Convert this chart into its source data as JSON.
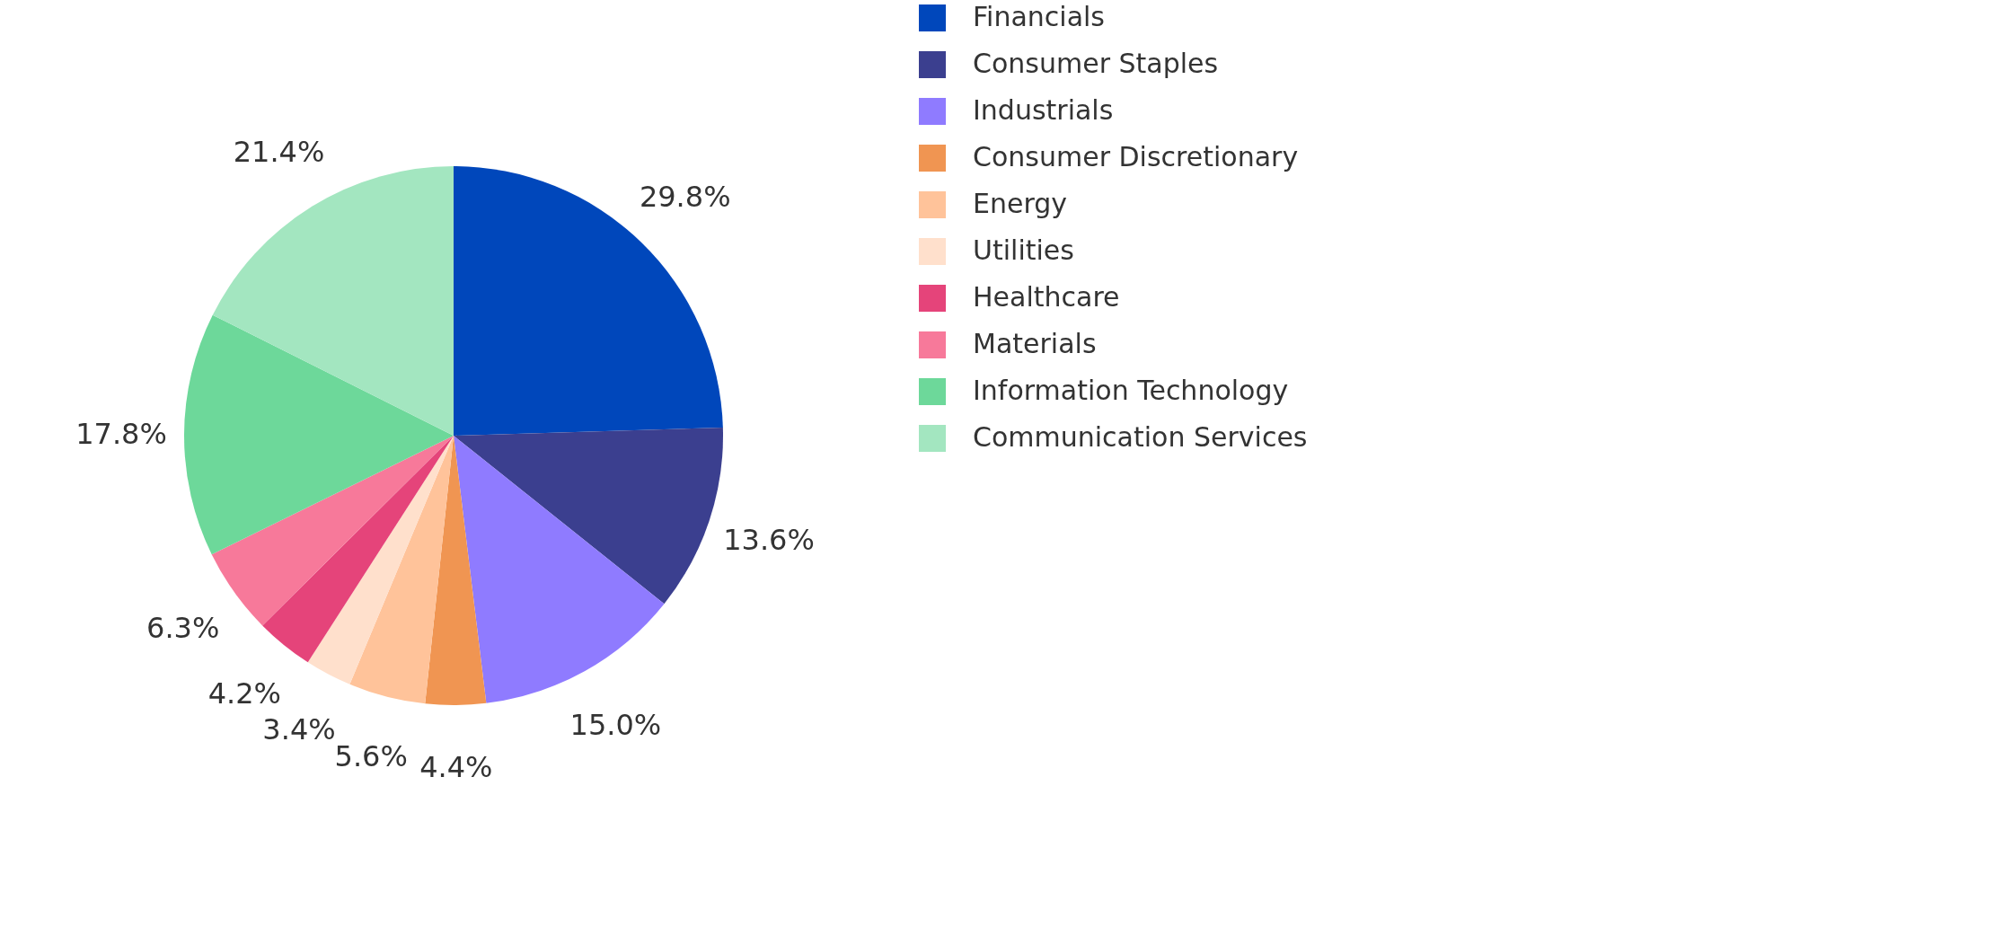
{
  "chart_data": {
    "type": "pie",
    "categories": [
      "Financials",
      "Consumer Staples",
      "Industrials",
      "Consumer Discretionary",
      "Energy",
      "Utilities",
      "Healthcare",
      "Materials",
      "Information Technology",
      "Communication Services"
    ],
    "values": [
      29.8,
      13.6,
      15.0,
      4.4,
      5.6,
      3.4,
      4.2,
      6.3,
      17.8,
      21.4
    ],
    "colors": [
      "#0047bb",
      "#3b3f8f",
      "#8f7bff",
      "#f09552",
      "#ffc39a",
      "#ffe0cc",
      "#e5447a",
      "#f7799a",
      "#6dd89a",
      "#a3e6c0"
    ],
    "value_labels": [
      "29.8%",
      "13.6%",
      "15.0%",
      "4.4%",
      "5.6%",
      "3.4%",
      "4.2%",
      "6.3%",
      "17.8%",
      "21.4%"
    ],
    "legend": "right"
  }
}
